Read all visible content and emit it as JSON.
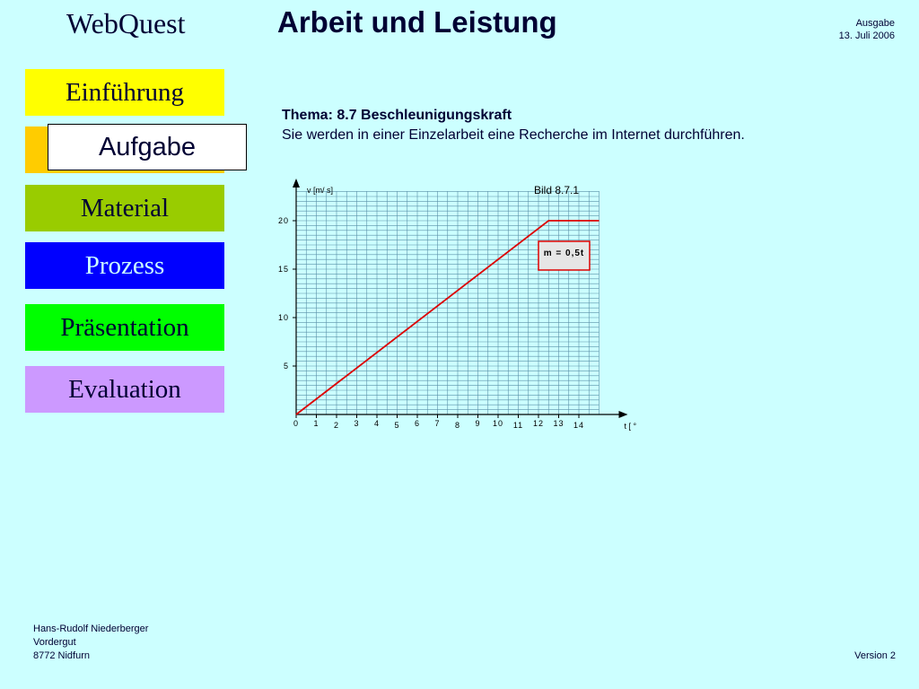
{
  "header": {
    "brand": "WebQuest",
    "title": "Arbeit und Leistung",
    "edition_label": "Ausgabe",
    "edition_date": "13. Juli  2006"
  },
  "nav": {
    "einfuehrung": "Einführung",
    "aufgabe": "Aufgabe",
    "material": "Material",
    "prozess": "Prozess",
    "praesentation": "Präsentation",
    "evaluation": "Evaluation"
  },
  "content": {
    "topic_heading": "Thema: 8.7 Beschleunigungskraft",
    "topic_text": "Sie werden in einer Einzelarbeit eine Recherche im Internet durchführen."
  },
  "chart_data": {
    "type": "line",
    "title": "Bild 8.7.1",
    "ylabel_var": "v",
    "ylabel_unit": "m/ s",
    "xlabel_var": "t",
    "xlabel_unit": "°",
    "annotation": "m = 0,5t",
    "xlim": [
      0,
      15
    ],
    "ylim": [
      0,
      20
    ],
    "xticks": [
      "0",
      "1",
      "2",
      "3",
      "4",
      "5",
      "6",
      "7",
      "8",
      "9",
      "10",
      "11",
      "12",
      "13",
      "14"
    ],
    "yticks": [
      "5",
      "10",
      "15",
      "20"
    ],
    "series": [
      {
        "x": [
          0,
          12.5,
          15
        ],
        "y": [
          0,
          20,
          20
        ],
        "color": "#dd0000"
      }
    ]
  },
  "footer": {
    "author": "Hans-Rudolf Niederberger",
    "street": "Vordergut",
    "city": "8772 Nidfurn",
    "version": "Version 2"
  }
}
